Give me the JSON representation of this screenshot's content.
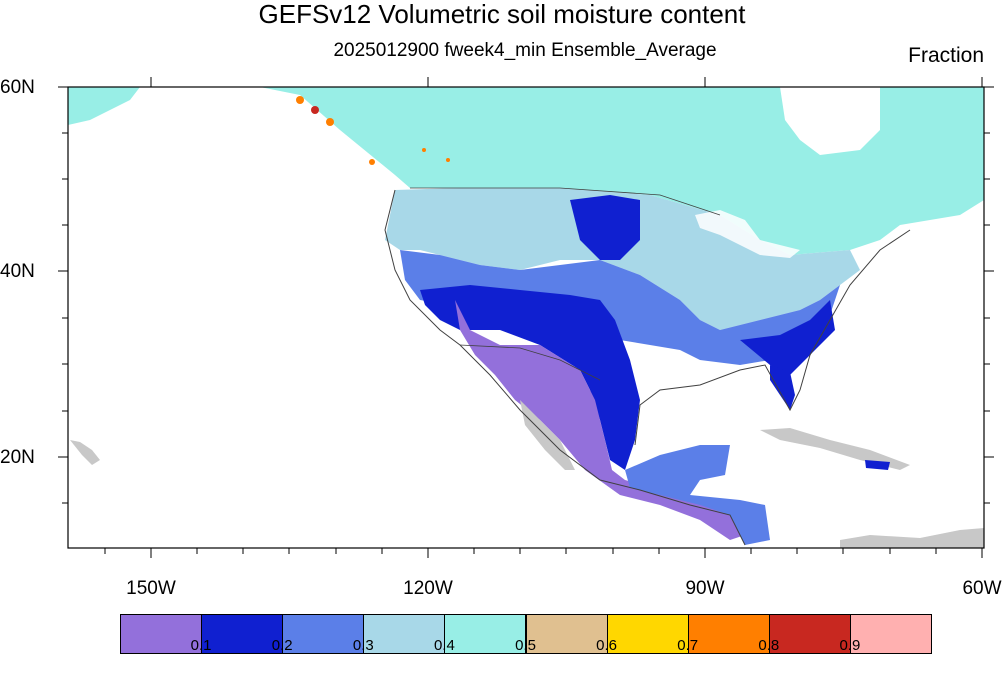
{
  "title": "GEFSv12 Volumetric soil moisture content",
  "subtitle": "2025012900 fweek4_min Ensemble_Average",
  "units": "Fraction",
  "lat_labels": [
    "60N",
    "40N",
    "20N"
  ],
  "lon_labels": [
    "150W",
    "120W",
    "90W",
    "60W"
  ],
  "colorbar": {
    "colors": [
      "#9370db",
      "#1020d0",
      "#5b7fe8",
      "#a8d8e8",
      "#98eee6",
      "#e0c090",
      "#ffd700",
      "#ff7f00",
      "#c82820",
      "#ffb0b0"
    ],
    "labels": [
      "0.1",
      "0.2",
      "0.3",
      "0.4",
      "0.5",
      "0.6",
      "0.7",
      "0.8",
      "0.9"
    ]
  },
  "colors": {
    "missing": "#c8c8c8",
    "land_border": "#404040",
    "background": "#ffffff"
  }
}
